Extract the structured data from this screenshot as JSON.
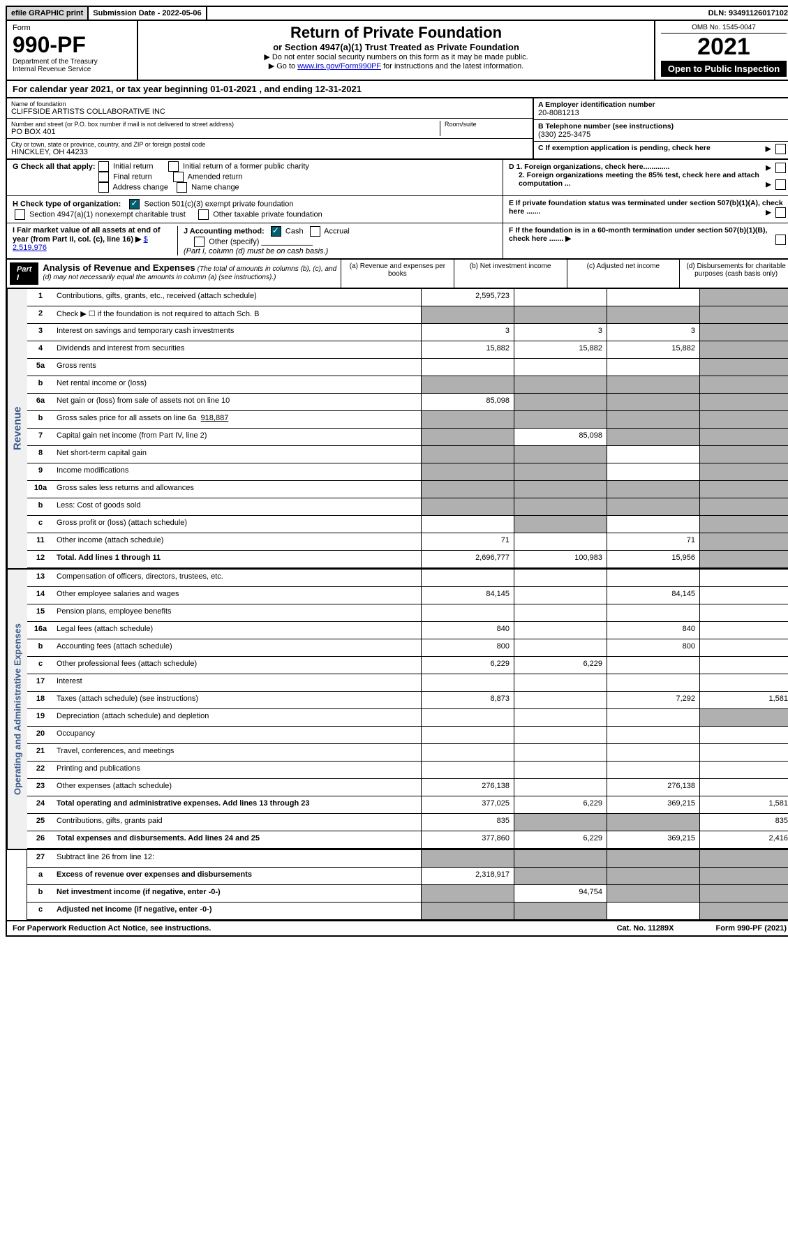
{
  "top": {
    "efile": "efile GRAPHIC print",
    "sub_date_label": "Submission Date - 2022-05-06",
    "dln": "DLN: 93491126017102"
  },
  "header": {
    "form_label": "Form",
    "form_num": "990-PF",
    "dept1": "Department of the Treasury",
    "dept2": "Internal Revenue Service",
    "title": "Return of Private Foundation",
    "subtitle": "or Section 4947(a)(1) Trust Treated as Private Foundation",
    "instr1": "▶ Do not enter social security numbers on this form as it may be made public.",
    "instr2_pre": "▶ Go to ",
    "instr2_link": "www.irs.gov/Form990PF",
    "instr2_post": " for instructions and the latest information.",
    "omb": "OMB No. 1545-0047",
    "year": "2021",
    "open": "Open to Public Inspection"
  },
  "calyear": "For calendar year 2021, or tax year beginning 01-01-2021            , and ending 12-31-2021",
  "name_block": {
    "label": "Name of foundation",
    "value": "CLIFFSIDE ARTISTS COLLABORATIVE INC",
    "addr_label": "Number and street (or P.O. box number if mail is not delivered to street address)",
    "addr": "PO BOX 401",
    "room_label": "Room/suite",
    "city_label": "City or town, state or province, country, and ZIP or foreign postal code",
    "city": "HINCKLEY, OH  44233"
  },
  "right_info": {
    "a_label": "A Employer identification number",
    "a_val": "20-8081213",
    "b_label": "B Telephone number (see instructions)",
    "b_val": "(330) 225-3475",
    "c_label": "C If exemption application is pending, check here",
    "d1": "D 1. Foreign organizations, check here.............",
    "d2": "2. Foreign organizations meeting the 85% test, check here and attach computation ...",
    "e": "E  If private foundation status was terminated under section 507(b)(1)(A), check here .......",
    "f": "F  If the foundation is in a 60-month termination under section 507(b)(1)(B), check here .......  ▶"
  },
  "g": {
    "label": "G Check all that apply:",
    "o1": "Initial return",
    "o2": "Initial return of a former public charity",
    "o3": "Final return",
    "o4": "Amended return",
    "o5": "Address change",
    "o6": "Name change"
  },
  "h": {
    "label": "H Check type of organization:",
    "o1": "Section 501(c)(3) exempt private foundation",
    "o2": "Section 4947(a)(1) nonexempt charitable trust",
    "o3": "Other taxable private foundation"
  },
  "i": {
    "label": "I Fair market value of all assets at end of year (from Part II, col. (c), line 16) ▶",
    "val": "$  2,519,976"
  },
  "j": {
    "label": "J Accounting method:",
    "cash": "Cash",
    "accrual": "Accrual",
    "other": "Other (specify)",
    "note": "(Part I, column (d) must be on cash basis.)"
  },
  "part1": {
    "label": "Part I",
    "title": "Analysis of Revenue and Expenses",
    "note": "(The total of amounts in columns (b), (c), and (d) may not necessarily equal the amounts in column (a) (see instructions).)",
    "col_a": "(a)   Revenue and expenses per books",
    "col_b": "(b)   Net investment income",
    "col_c": "(c)   Adjusted net income",
    "col_d": "(d)  Disbursements for charitable purposes (cash basis only)"
  },
  "side_rev": "Revenue",
  "side_exp": "Operating and Administrative Expenses",
  "lines": {
    "1": {
      "n": "1",
      "d": "Contributions, gifts, grants, etc., received (attach schedule)",
      "a": "2,595,723"
    },
    "2": {
      "n": "2",
      "d": "Check ▶ ☐ if the foundation is not required to attach Sch. B"
    },
    "3": {
      "n": "3",
      "d": "Interest on savings and temporary cash investments",
      "a": "3",
      "b": "3",
      "c": "3"
    },
    "4": {
      "n": "4",
      "d": "Dividends and interest from securities",
      "a": "15,882",
      "b": "15,882",
      "c": "15,882"
    },
    "5a": {
      "n": "5a",
      "d": "Gross rents"
    },
    "5b": {
      "n": "b",
      "d": "Net rental income or (loss)"
    },
    "6a": {
      "n": "6a",
      "d": "Net gain or (loss) from sale of assets not on line 10",
      "a": "85,098"
    },
    "6b": {
      "n": "b",
      "d": "Gross sales price for all assets on line 6a",
      "v": "918,887"
    },
    "7": {
      "n": "7",
      "d": "Capital gain net income (from Part IV, line 2)",
      "b": "85,098"
    },
    "8": {
      "n": "8",
      "d": "Net short-term capital gain"
    },
    "9": {
      "n": "9",
      "d": "Income modifications"
    },
    "10a": {
      "n": "10a",
      "d": "Gross sales less returns and allowances"
    },
    "10b": {
      "n": "b",
      "d": "Less: Cost of goods sold"
    },
    "10c": {
      "n": "c",
      "d": "Gross profit or (loss) (attach schedule)"
    },
    "11": {
      "n": "11",
      "d": "Other income (attach schedule)",
      "a": "71",
      "c": "71"
    },
    "12": {
      "n": "12",
      "d": "Total. Add lines 1 through 11",
      "a": "2,696,777",
      "b": "100,983",
      "c": "15,956"
    },
    "13": {
      "n": "13",
      "d": "Compensation of officers, directors, trustees, etc."
    },
    "14": {
      "n": "14",
      "d": "Other employee salaries and wages",
      "a": "84,145",
      "c": "84,145"
    },
    "15": {
      "n": "15",
      "d": "Pension plans, employee benefits"
    },
    "16a": {
      "n": "16a",
      "d": "Legal fees (attach schedule)",
      "a": "840",
      "c": "840"
    },
    "16b": {
      "n": "b",
      "d": "Accounting fees (attach schedule)",
      "a": "800",
      "c": "800"
    },
    "16c": {
      "n": "c",
      "d": "Other professional fees (attach schedule)",
      "a": "6,229",
      "b": "6,229"
    },
    "17": {
      "n": "17",
      "d": "Interest"
    },
    "18": {
      "n": "18",
      "d": "Taxes (attach schedule) (see instructions)",
      "a": "8,873",
      "c": "7,292",
      "dd": "1,581"
    },
    "19": {
      "n": "19",
      "d": "Depreciation (attach schedule) and depletion"
    },
    "20": {
      "n": "20",
      "d": "Occupancy"
    },
    "21": {
      "n": "21",
      "d": "Travel, conferences, and meetings"
    },
    "22": {
      "n": "22",
      "d": "Printing and publications"
    },
    "23": {
      "n": "23",
      "d": "Other expenses (attach schedule)",
      "a": "276,138",
      "c": "276,138"
    },
    "24": {
      "n": "24",
      "d": "Total operating and administrative expenses. Add lines 13 through 23",
      "a": "377,025",
      "b": "6,229",
      "c": "369,215",
      "dd": "1,581"
    },
    "25": {
      "n": "25",
      "d": "Contributions, gifts, grants paid",
      "a": "835",
      "dd": "835"
    },
    "26": {
      "n": "26",
      "d": "Total expenses and disbursements. Add lines 24 and 25",
      "a": "377,860",
      "b": "6,229",
      "c": "369,215",
      "dd": "2,416"
    },
    "27": {
      "n": "27",
      "d": "Subtract line 26 from line 12:"
    },
    "27a": {
      "n": "a",
      "d": "Excess of revenue over expenses and disbursements",
      "a": "2,318,917"
    },
    "27b": {
      "n": "b",
      "d": "Net investment income (if negative, enter -0-)",
      "b": "94,754"
    },
    "27c": {
      "n": "c",
      "d": "Adjusted net income (if negative, enter -0-)"
    }
  },
  "footer": {
    "pra": "For Paperwork Reduction Act Notice, see instructions.",
    "cat": "Cat. No. 11289X",
    "form": "Form 990-PF (2021)"
  }
}
